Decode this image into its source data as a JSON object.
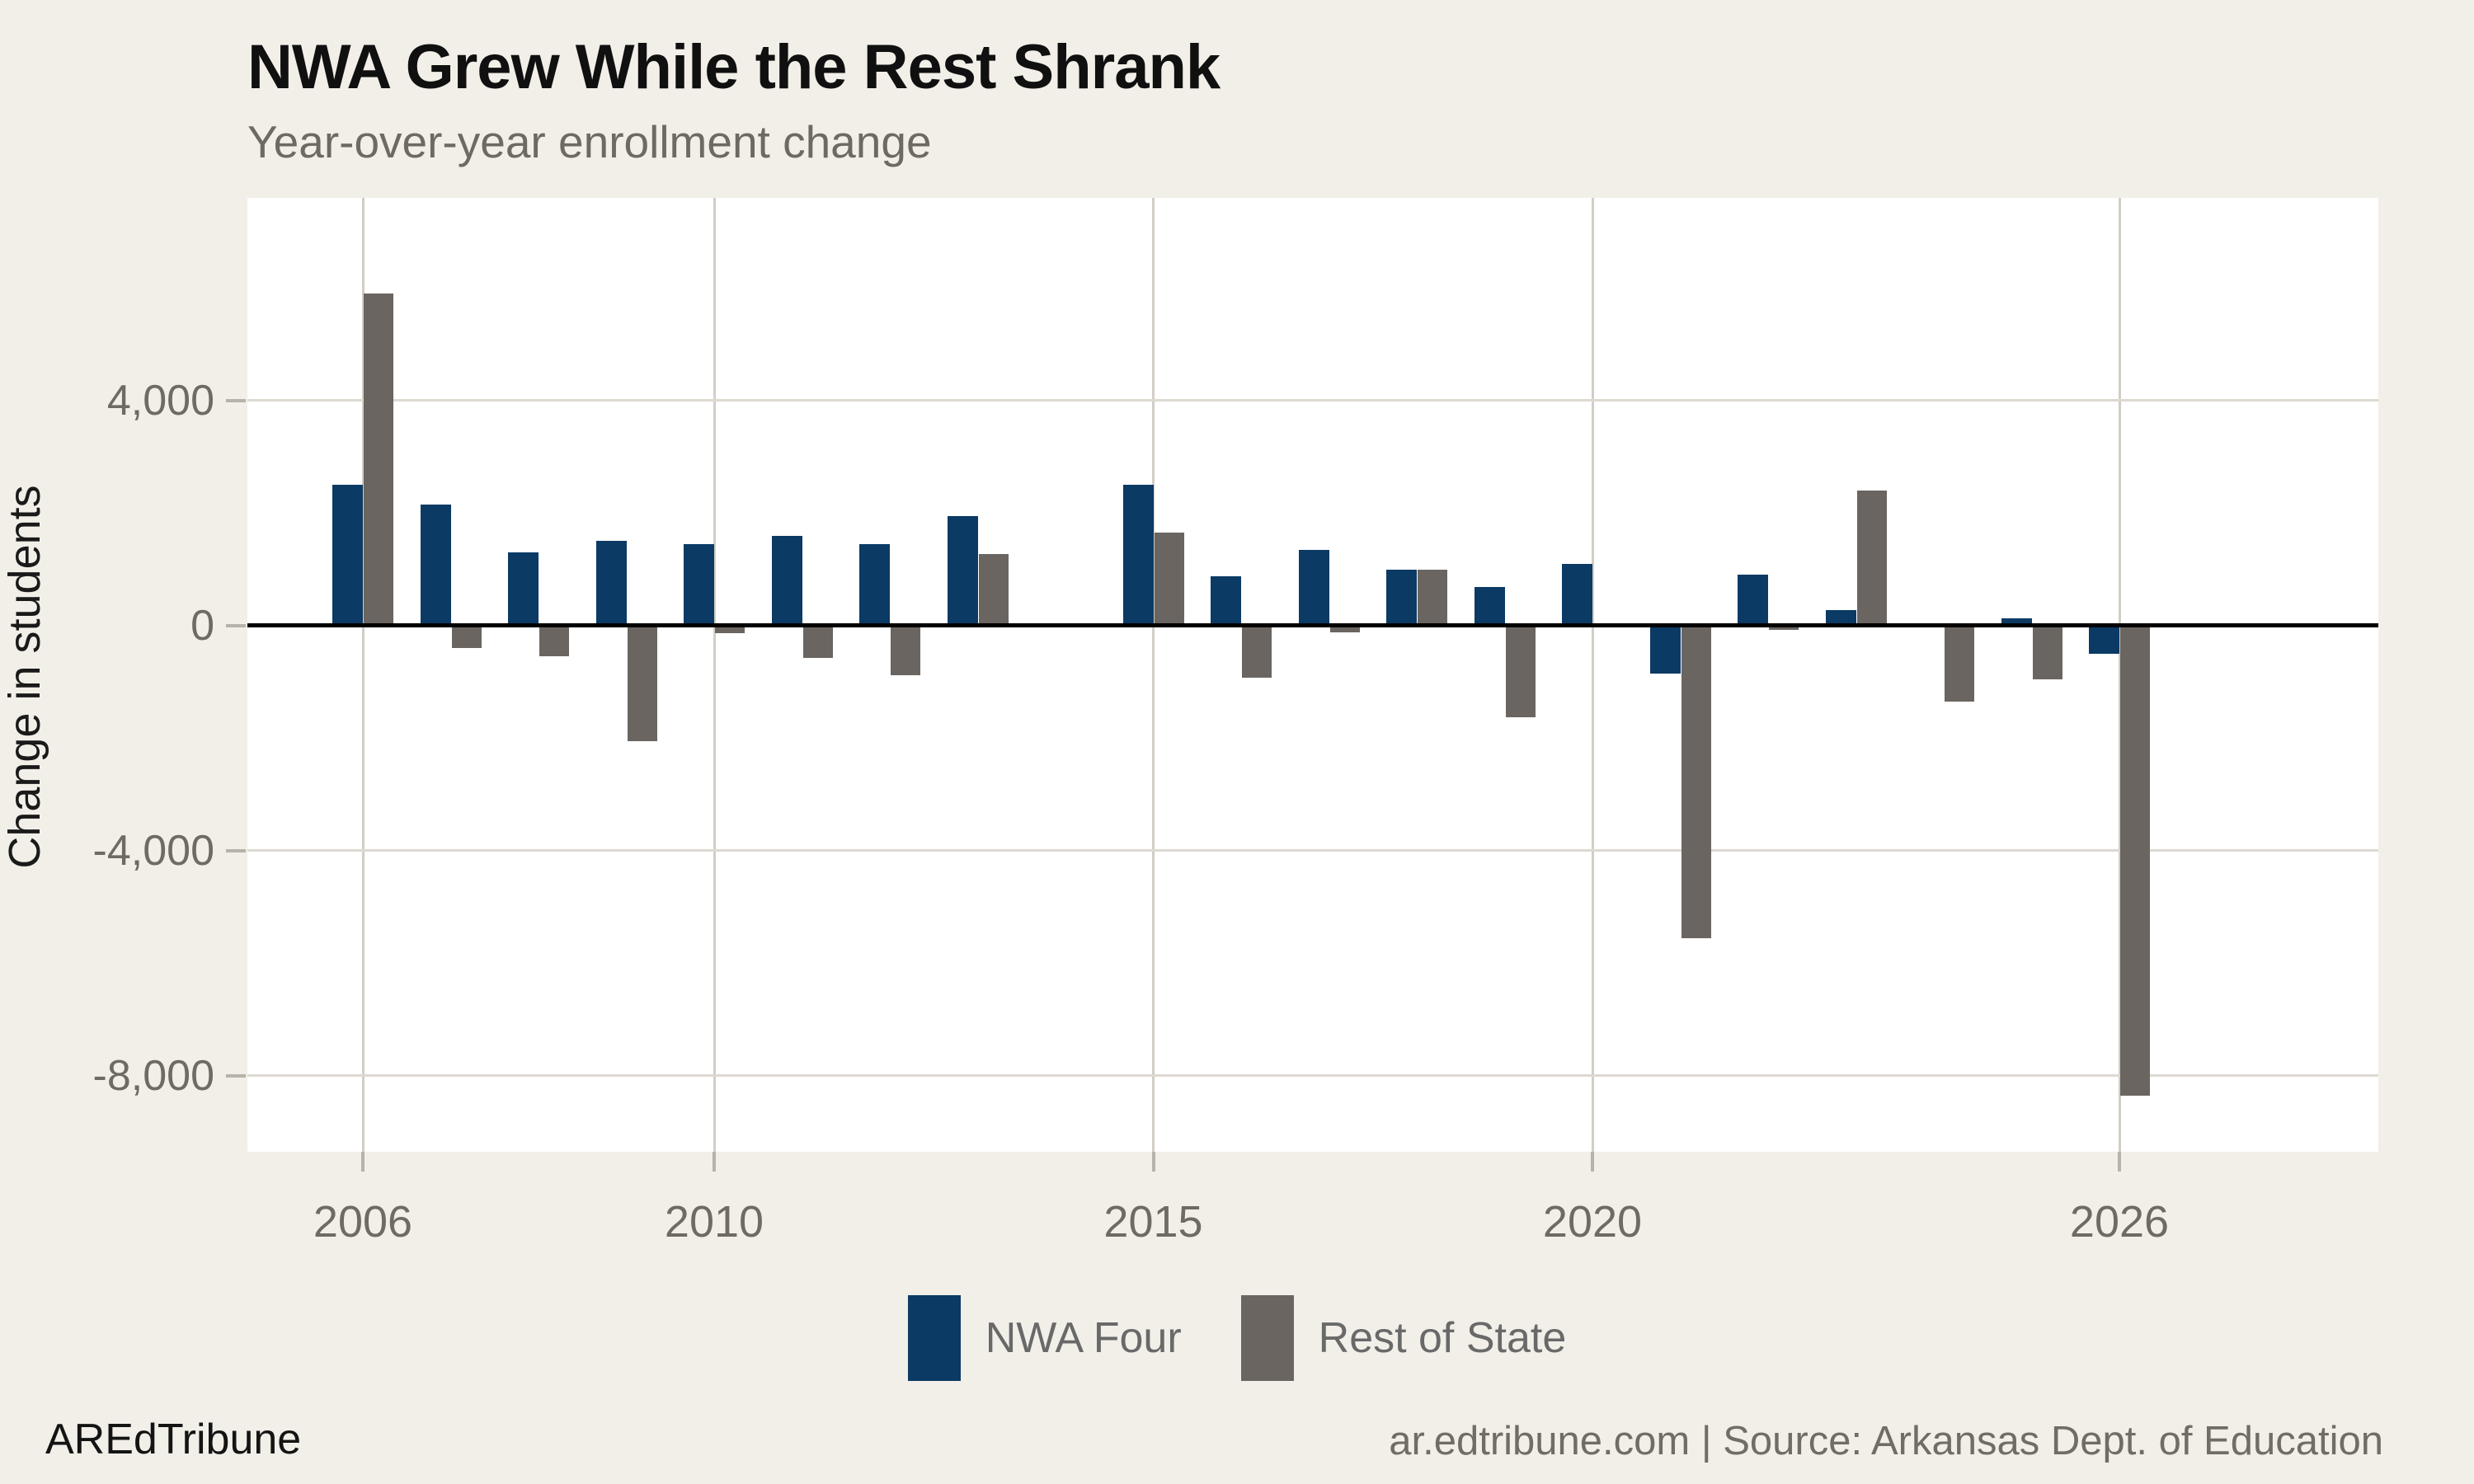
{
  "header": {
    "title": "NWA Grew While the Rest Shrank",
    "subtitle": "Year-over-year enrollment change"
  },
  "y_axis": {
    "title": "Change in students",
    "ticks": [
      {
        "label": "4,000",
        "value": 4000
      },
      {
        "label": "0",
        "value": 0
      },
      {
        "label": "-4,000",
        "value": -4000
      },
      {
        "label": "-8,000",
        "value": -8000
      }
    ]
  },
  "x_axis": {
    "ticks": [
      {
        "label": "2006",
        "year": 2006
      },
      {
        "label": "2010",
        "year": 2010
      },
      {
        "label": "2015",
        "year": 2015
      },
      {
        "label": "2020",
        "year": 2020
      },
      {
        "label": "2026",
        "year": 2026
      }
    ]
  },
  "legend": [
    {
      "label": "NWA Four",
      "color": "#0b3a64"
    },
    {
      "label": "Rest of State",
      "color": "#6a6560"
    }
  ],
  "footer": {
    "brand": "AREdTribune",
    "source": "ar.edtribune.com | Source: Arkansas Dept. of Education"
  },
  "colors": {
    "background": "#f2efe8",
    "panel": "#ffffff",
    "nwa_blue": "#0b3a64",
    "rest_gray": "#6a6560",
    "gridline": "#d8d4cc",
    "zero_line": "#000000",
    "tick_text": "#6f6a63"
  },
  "chart_data": {
    "type": "bar",
    "title": "NWA Grew While the Rest Shrank",
    "subtitle": "Year-over-year enrollment change",
    "xlabel": "",
    "ylabel": "Change in students",
    "x": [
      2006,
      2007,
      2008,
      2009,
      2010,
      2011,
      2012,
      2013,
      2014,
      2015,
      2016,
      2017,
      2018,
      2019,
      2020,
      2021,
      2022,
      2023,
      2024,
      2025,
      2026
    ],
    "series": [
      {
        "name": "NWA Four",
        "color": "#0b3a64",
        "values": [
          2500,
          2150,
          1300,
          1500,
          1450,
          1600,
          1450,
          1950,
          0,
          2500,
          880,
          1350,
          1000,
          680,
          1100,
          -850,
          900,
          270,
          0,
          130,
          -500
        ]
      },
      {
        "name": "Rest of State",
        "color": "#6a6560",
        "values": [
          5900,
          -400,
          -550,
          -2050,
          -130,
          -580,
          -880,
          1270,
          0,
          1650,
          -920,
          -120,
          1000,
          -1630,
          0,
          -5550,
          -70,
          2400,
          -1350,
          -950,
          -8350
        ]
      }
    ],
    "ylim": [
      -9350,
      7600
    ],
    "ytick_values": [
      4000,
      0,
      -4000,
      -8000
    ],
    "xtick_years": [
      2006,
      2010,
      2015,
      2020,
      2026
    ],
    "grid": true,
    "legend_position": "bottom",
    "zero_line": true
  }
}
